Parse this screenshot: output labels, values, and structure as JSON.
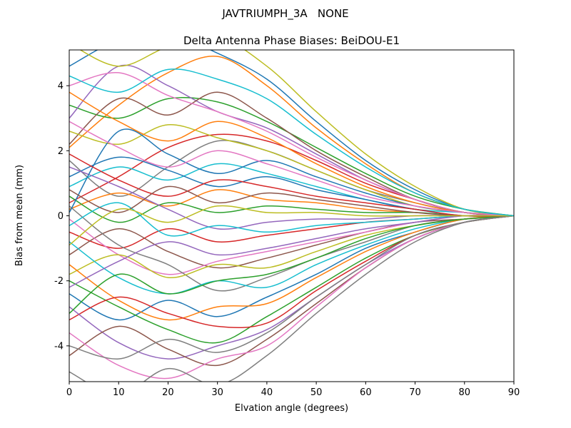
{
  "suptitle": "JAVTRIUMPH_3A   NONE",
  "chart_data": {
    "type": "line",
    "title": "Delta Antenna Phase Biases: BeiDOU-E1",
    "xlabel": "Elvation angle (degrees)",
    "ylabel": "Bias from mean (mm)",
    "xlim": [
      0,
      90
    ],
    "ylim": [
      -5.1,
      5.1
    ],
    "xticks": [
      0,
      10,
      20,
      30,
      40,
      50,
      60,
      70,
      80,
      90
    ],
    "yticks": [
      -4,
      -2,
      0,
      2,
      4
    ],
    "grid": false,
    "legend": "none",
    "x": [
      0,
      10,
      20,
      30,
      40,
      50,
      60,
      70,
      80,
      90
    ],
    "series": [
      {
        "color": "#1f77b4",
        "values": [
          4.6,
          5.4,
          5.6,
          5.0,
          4.2,
          2.9,
          1.7,
          0.8,
          0.2,
          0.0
        ]
      },
      {
        "color": "#ff7f0e",
        "values": [
          2.1,
          3.4,
          4.4,
          4.9,
          4.0,
          2.7,
          1.6,
          0.7,
          0.2,
          0.0
        ]
      },
      {
        "color": "#2ca02c",
        "values": [
          3.4,
          3.0,
          3.6,
          3.5,
          2.9,
          2.1,
          1.3,
          0.6,
          0.2,
          0.0
        ]
      },
      {
        "color": "#d62728",
        "values": [
          0.4,
          1.2,
          2.1,
          2.5,
          2.3,
          1.7,
          1.0,
          0.5,
          0.1,
          0.0
        ]
      },
      {
        "color": "#9467bd",
        "values": [
          3.0,
          4.6,
          4.0,
          3.2,
          2.7,
          1.9,
          1.1,
          0.5,
          0.1,
          0.0
        ]
      },
      {
        "color": "#8c564b",
        "values": [
          2.2,
          3.6,
          3.1,
          3.8,
          3.0,
          2.0,
          1.2,
          0.5,
          0.1,
          0.0
        ]
      },
      {
        "color": "#e377c2",
        "values": [
          4.0,
          4.4,
          3.7,
          3.2,
          2.6,
          1.8,
          1.1,
          0.5,
          0.1,
          0.0
        ]
      },
      {
        "color": "#7f7f7f",
        "values": [
          1.7,
          0.6,
          1.5,
          2.3,
          2.0,
          1.4,
          0.8,
          0.4,
          0.1,
          0.0
        ]
      },
      {
        "color": "#bcbd22",
        "values": [
          2.6,
          2.2,
          2.8,
          2.4,
          2.0,
          1.4,
          0.8,
          0.3,
          0.1,
          0.0
        ]
      },
      {
        "color": "#17becf",
        "values": [
          0.9,
          1.5,
          1.1,
          1.6,
          1.3,
          0.9,
          0.5,
          0.2,
          0.1,
          0.0
        ]
      },
      {
        "color": "#1f77b4",
        "values": [
          1.2,
          1.8,
          1.4,
          0.9,
          1.2,
          0.8,
          0.5,
          0.2,
          0.0,
          0.0
        ]
      },
      {
        "color": "#ff7f0e",
        "values": [
          0.2,
          0.7,
          0.3,
          0.8,
          0.5,
          0.4,
          0.2,
          0.1,
          0.0,
          0.0
        ]
      },
      {
        "color": "#2ca02c",
        "values": [
          0.6,
          -0.2,
          0.4,
          0.1,
          0.3,
          0.2,
          0.1,
          0.1,
          0.0,
          0.0
        ]
      },
      {
        "color": "#d62728",
        "values": [
          -0.5,
          -1.0,
          -0.4,
          -0.8,
          -0.6,
          -0.4,
          -0.2,
          -0.1,
          0.0,
          0.0
        ]
      },
      {
        "color": "#9467bd",
        "values": [
          1.5,
          0.9,
          0.2,
          -0.4,
          -0.2,
          -0.1,
          -0.1,
          0.0,
          0.0,
          0.0
        ]
      },
      {
        "color": "#8c564b",
        "values": [
          -1.2,
          -0.4,
          -1.1,
          -1.6,
          -1.3,
          -0.9,
          -0.5,
          -0.2,
          -0.1,
          0.0
        ]
      },
      {
        "color": "#e377c2",
        "values": [
          -0.1,
          -1.2,
          -1.8,
          -1.4,
          -1.1,
          -0.8,
          -0.5,
          -0.2,
          0.0,
          0.0
        ]
      },
      {
        "color": "#7f7f7f",
        "values": [
          0.3,
          -0.9,
          -1.5,
          -2.3,
          -1.9,
          -1.3,
          -0.8,
          -0.3,
          -0.1,
          0.0
        ]
      },
      {
        "color": "#bcbd22",
        "values": [
          -1.8,
          -1.2,
          -1.9,
          -1.5,
          -1.6,
          -1.1,
          -0.6,
          -0.3,
          -0.1,
          0.0
        ]
      },
      {
        "color": "#17becf",
        "values": [
          -0.8,
          -1.9,
          -2.4,
          -2.0,
          -2.2,
          -1.5,
          -0.9,
          -0.4,
          -0.1,
          0.0
        ]
      },
      {
        "color": "#1f77b4",
        "values": [
          -2.4,
          -3.2,
          -2.6,
          -3.1,
          -2.5,
          -1.8,
          -1.0,
          -0.5,
          -0.1,
          0.0
        ]
      },
      {
        "color": "#ff7f0e",
        "values": [
          -1.5,
          -2.6,
          -3.2,
          -2.8,
          -2.7,
          -1.9,
          -1.1,
          -0.5,
          -0.1,
          0.0
        ]
      },
      {
        "color": "#2ca02c",
        "values": [
          -2.0,
          -2.8,
          -3.5,
          -3.9,
          -3.1,
          -2.2,
          -1.3,
          -0.6,
          -0.2,
          0.0
        ]
      },
      {
        "color": "#d62728",
        "values": [
          -3.2,
          -2.5,
          -3.0,
          -3.4,
          -3.3,
          -2.3,
          -1.4,
          -0.6,
          -0.2,
          0.0
        ]
      },
      {
        "color": "#9467bd",
        "values": [
          -2.8,
          -3.9,
          -4.4,
          -4.0,
          -3.5,
          -2.5,
          -1.5,
          -0.7,
          -0.2,
          0.0
        ]
      },
      {
        "color": "#8c564b",
        "values": [
          -4.3,
          -3.4,
          -4.1,
          -4.6,
          -3.8,
          -2.7,
          -1.6,
          -0.7,
          -0.2,
          0.0
        ]
      },
      {
        "color": "#e377c2",
        "values": [
          -3.6,
          -4.6,
          -5.0,
          -4.4,
          -4.0,
          -2.8,
          -1.6,
          -0.7,
          -0.2,
          0.0
        ]
      },
      {
        "color": "#7f7f7f",
        "values": [
          -4.8,
          -5.5,
          -4.7,
          -5.2,
          -4.3,
          -3.0,
          -1.8,
          -0.8,
          -0.2,
          0.0
        ]
      },
      {
        "color": "#bcbd22",
        "values": [
          5.3,
          4.6,
          5.2,
          5.5,
          4.6,
          3.2,
          1.9,
          0.9,
          0.2,
          0.0
        ]
      },
      {
        "color": "#17becf",
        "values": [
          -0.3,
          0.4,
          -0.6,
          -0.3,
          -0.5,
          -0.3,
          -0.2,
          -0.1,
          0.0,
          0.0
        ]
      },
      {
        "color": "#1f77b4",
        "values": [
          0.1,
          2.6,
          1.9,
          1.3,
          1.7,
          1.2,
          0.7,
          0.3,
          0.1,
          0.0
        ]
      },
      {
        "color": "#ff7f0e",
        "values": [
          3.8,
          2.9,
          2.3,
          2.9,
          2.4,
          1.6,
          0.9,
          0.4,
          0.1,
          0.0
        ]
      },
      {
        "color": "#2ca02c",
        "values": [
          -3.0,
          -1.8,
          -2.4,
          -2.0,
          -1.8,
          -1.3,
          -0.7,
          -0.3,
          -0.1,
          0.0
        ]
      },
      {
        "color": "#d62728",
        "values": [
          1.9,
          1.1,
          0.6,
          1.1,
          0.9,
          0.6,
          0.4,
          0.2,
          0.0,
          0.0
        ]
      },
      {
        "color": "#9467bd",
        "values": [
          -2.2,
          -1.4,
          -0.8,
          -1.2,
          -1.0,
          -0.7,
          -0.4,
          -0.2,
          0.0,
          0.0
        ]
      },
      {
        "color": "#8c564b",
        "values": [
          0.8,
          0.1,
          0.9,
          0.4,
          0.7,
          0.5,
          0.3,
          0.1,
          0.0,
          0.0
        ]
      },
      {
        "color": "#e377c2",
        "values": [
          2.9,
          2.1,
          1.5,
          2.0,
          1.6,
          1.1,
          0.6,
          0.3,
          0.1,
          0.0
        ]
      },
      {
        "color": "#7f7f7f",
        "values": [
          -4.0,
          -4.4,
          -3.8,
          -4.2,
          -3.6,
          -2.5,
          -1.5,
          -0.6,
          -0.2,
          0.0
        ]
      },
      {
        "color": "#bcbd22",
        "values": [
          -0.9,
          0.2,
          -0.2,
          0.3,
          0.1,
          0.1,
          0.0,
          0.0,
          0.0,
          0.0
        ]
      },
      {
        "color": "#17becf",
        "values": [
          4.3,
          3.8,
          4.5,
          4.2,
          3.6,
          2.5,
          1.5,
          0.7,
          0.2,
          0.0
        ]
      }
    ]
  }
}
